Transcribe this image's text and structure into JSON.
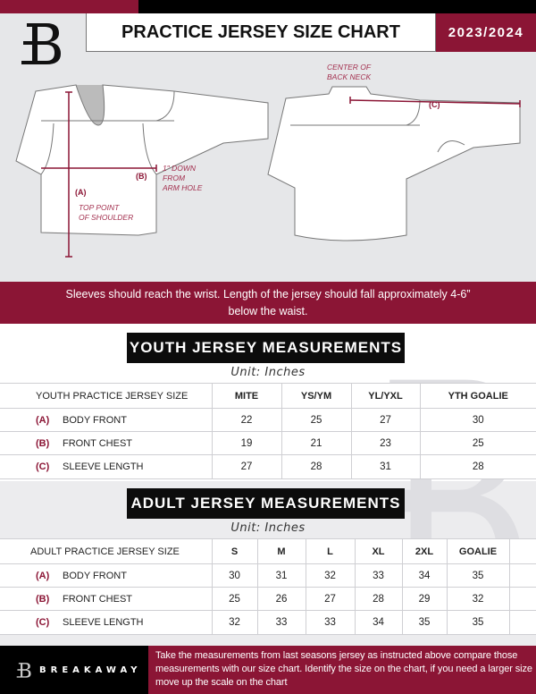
{
  "header": {
    "title": "PRACTICE JERSEY SIZE CHART",
    "season": "2023/2024",
    "brand_color": "#8b1535"
  },
  "diagram": {
    "front": {
      "label_a": "(A)",
      "note_a": "TOP POINT\nOF SHOULDER",
      "label_b": "(B)",
      "note_b": "1\" DOWN\nFROM\nARM HOLE"
    },
    "back": {
      "note_c": "CENTER OF\nBACK NECK",
      "label_c": "(C)"
    }
  },
  "instruction": "Sleeves should reach the wrist. Length of the jersey should fall approximately 4-6” below the waist.",
  "youth": {
    "title": "YOUTH JERSEY MEASUREMENTS",
    "unit": "Unit: Inches",
    "header": [
      "YOUTH PRACTICE JERSEY SIZE",
      "MITE",
      "YS/YM",
      "YL/YXL",
      "YTH GOALIE"
    ],
    "rows": [
      {
        "letter": "(A)",
        "name": "BODY FRONT",
        "values": [
          "22",
          "25",
          "27",
          "30"
        ]
      },
      {
        "letter": "(B)",
        "name": "FRONT CHEST",
        "values": [
          "19",
          "21",
          "23",
          "25"
        ]
      },
      {
        "letter": "(C)",
        "name": "SLEEVE LENGTH",
        "values": [
          "27",
          "28",
          "31",
          "28"
        ]
      }
    ]
  },
  "adult": {
    "title": "ADULT JERSEY MEASUREMENTS",
    "unit": "Unit: Inches",
    "header": [
      "ADULT PRACTICE JERSEY SIZE",
      "S",
      "M",
      "L",
      "XL",
      "2XL",
      "GOALIE"
    ],
    "rows": [
      {
        "letter": "(A)",
        "name": "BODY FRONT",
        "values": [
          "30",
          "31",
          "32",
          "33",
          "34",
          "35"
        ]
      },
      {
        "letter": "(B)",
        "name": "FRONT CHEST",
        "values": [
          "25",
          "26",
          "27",
          "28",
          "29",
          "32"
        ]
      },
      {
        "letter": "(C)",
        "name": "SLEEVE LENGTH",
        "values": [
          "32",
          "33",
          "33",
          "34",
          "35",
          "35"
        ]
      }
    ]
  },
  "footer": {
    "brand": "BREAKAWAY",
    "text": "Take the measurements from last seasons jersey as instructed above compare those measurements  with our size chart. Identify the size on the chart, if you need a larger size move up the scale on the chart"
  }
}
